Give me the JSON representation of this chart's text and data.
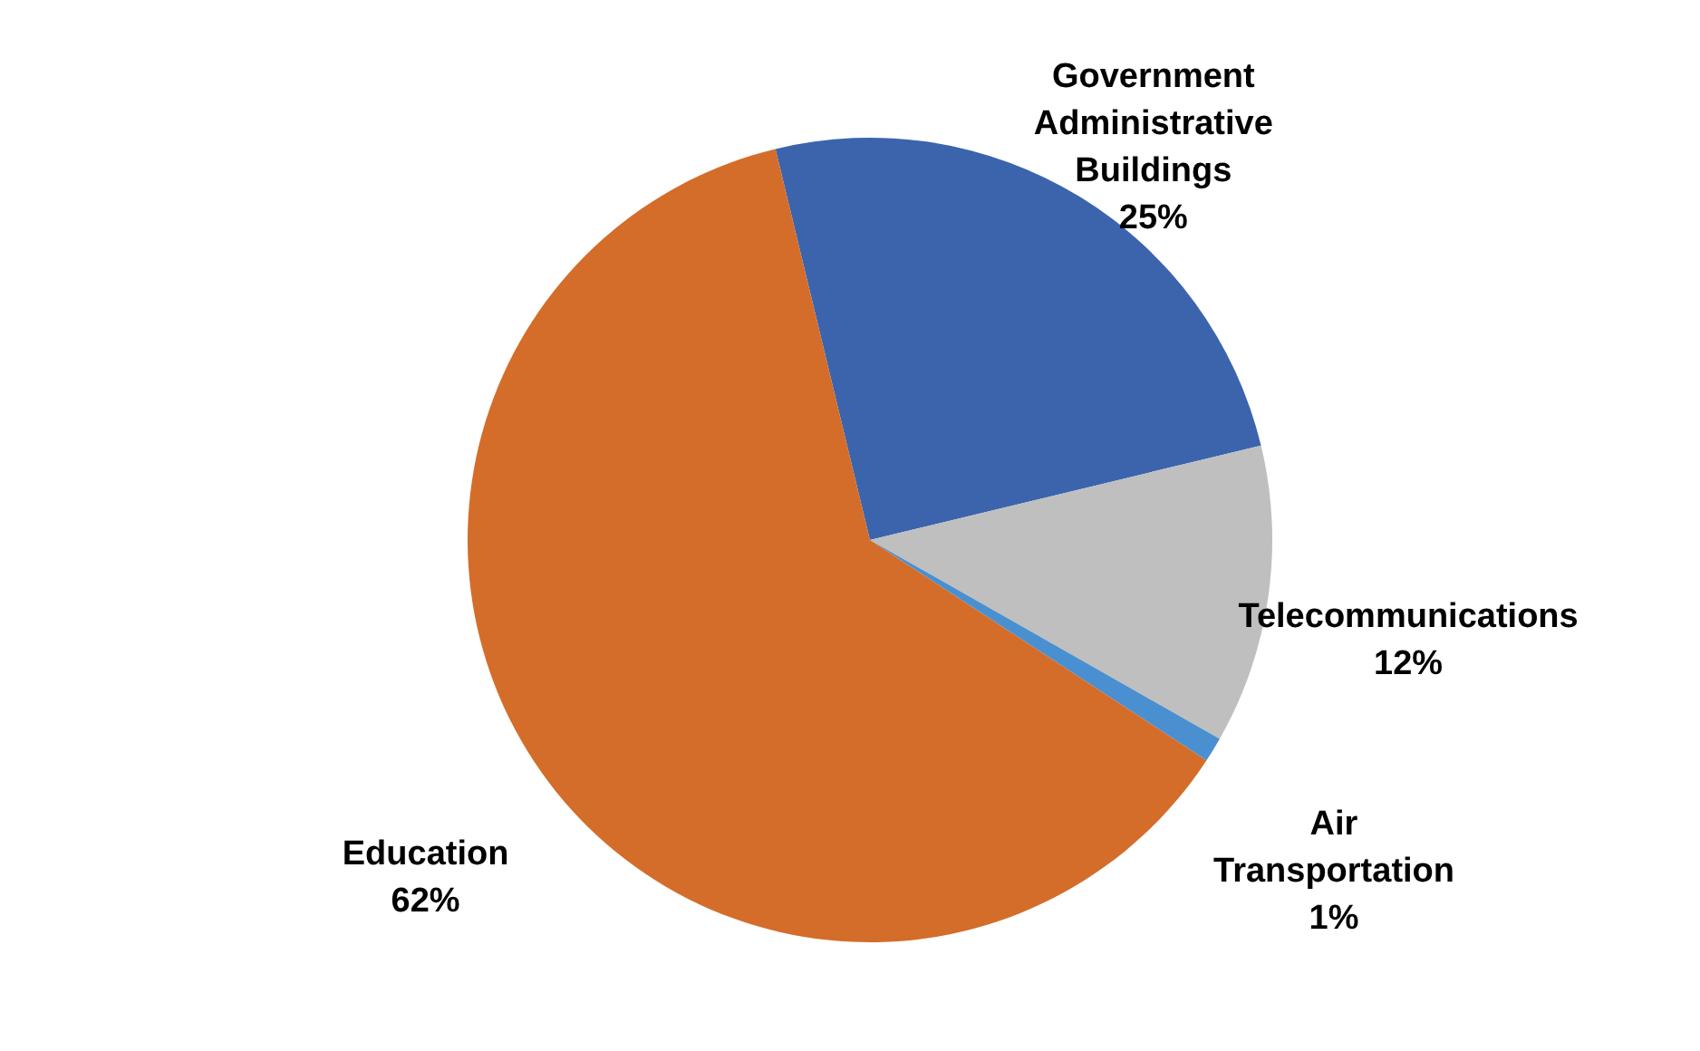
{
  "chart_data": {
    "type": "pie",
    "categories": [
      "Government Administrative Buildings",
      "Telecommunications",
      "Air Transportation",
      "Education"
    ],
    "values": [
      25,
      12,
      1,
      62
    ],
    "value_labels": [
      "25%",
      "12%",
      "1%",
      "62%"
    ],
    "colors": [
      "#3b64ad",
      "#bfbfbf",
      "#4a90d0",
      "#d46d2a"
    ]
  }
}
